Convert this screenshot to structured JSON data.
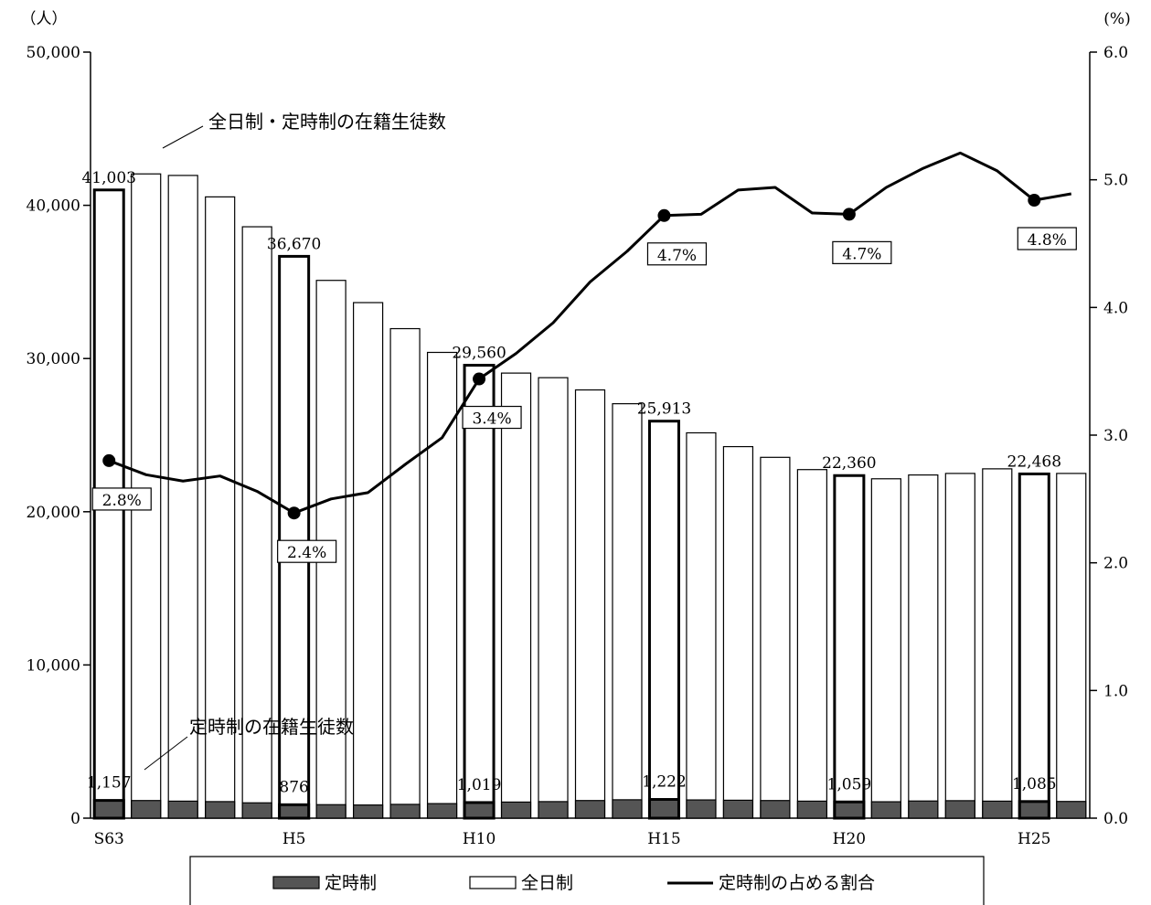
{
  "chart_data": {
    "type": "bar",
    "left_axis_unit": "（人）",
    "right_axis_unit": "(%)",
    "left_ticks": [
      "0",
      "10,000",
      "20,000",
      "30,000",
      "40,000",
      "50,000"
    ],
    "right_ticks": [
      "0.0",
      "1.0",
      "2.0",
      "3.0",
      "4.0",
      "5.0",
      "6.0"
    ],
    "ylim_left": [
      0,
      50000
    ],
    "ylim_right": [
      0.0,
      6.0
    ],
    "x_tick_labels": [
      {
        "index": 0,
        "label": "S63"
      },
      {
        "index": 5,
        "label": "H5"
      },
      {
        "index": 10,
        "label": "H10"
      },
      {
        "index": 15,
        "label": "H15"
      },
      {
        "index": 20,
        "label": "H20"
      },
      {
        "index": 25,
        "label": "H25"
      }
    ],
    "highlighted_indices": [
      0,
      5,
      10,
      15,
      20,
      25
    ],
    "categories": [
      "S63",
      "H1",
      "H2",
      "H3",
      "H4",
      "H5",
      "H6",
      "H7",
      "H8",
      "H9",
      "H10",
      "H11",
      "H12",
      "H13",
      "H14",
      "H15",
      "H16",
      "H17",
      "H18",
      "H19",
      "H20",
      "H21",
      "H22",
      "H23",
      "H24",
      "H25",
      "H26"
    ],
    "series": [
      {
        "name": "定時制",
        "kind": "bar",
        "color": "#555555",
        "values": [
          1157,
          1150,
          1110,
          1080,
          1000,
          876,
          880,
          860,
          900,
          950,
          1019,
          1050,
          1080,
          1150,
          1200,
          1222,
          1190,
          1170,
          1150,
          1110,
          1059,
          1070,
          1120,
          1140,
          1110,
          1085,
          1090
        ]
      },
      {
        "name": "全日制",
        "kind": "bar",
        "color": "#ffffff",
        "values": [
          41003,
          42050,
          41950,
          40550,
          38600,
          36670,
          35100,
          33650,
          31950,
          30400,
          29560,
          29050,
          28750,
          27950,
          27050,
          25913,
          25150,
          24250,
          23550,
          22750,
          22360,
          22150,
          22400,
          22500,
          22800,
          22468,
          22500
        ]
      },
      {
        "name": "定時制の占める割合",
        "kind": "line",
        "color": "#000000",
        "values": [
          2.8,
          2.69,
          2.64,
          2.68,
          2.56,
          2.39,
          2.5,
          2.55,
          2.77,
          2.98,
          3.44,
          3.64,
          3.88,
          4.2,
          4.44,
          4.72,
          4.73,
          4.92,
          4.94,
          4.74,
          4.73,
          4.94,
          5.09,
          5.21,
          5.07,
          4.84,
          4.89
        ]
      }
    ],
    "value_labels_total": [
      {
        "index": 0,
        "text": "41,003"
      },
      {
        "index": 5,
        "text": "36,670"
      },
      {
        "index": 10,
        "text": "29,560"
      },
      {
        "index": 15,
        "text": "25,913"
      },
      {
        "index": 20,
        "text": "22,360"
      },
      {
        "index": 25,
        "text": "22,468"
      }
    ],
    "value_labels_part": [
      {
        "index": 0,
        "text": "1,157"
      },
      {
        "index": 5,
        "text": "876"
      },
      {
        "index": 10,
        "text": "1,019"
      },
      {
        "index": 15,
        "text": "1,222"
      },
      {
        "index": 20,
        "text": "1,059"
      },
      {
        "index": 25,
        "text": "1,085"
      }
    ],
    "pct_labels": [
      {
        "index": 0,
        "text": "2.8%",
        "pos": "below"
      },
      {
        "index": 5,
        "text": "2.4%",
        "pos": "below"
      },
      {
        "index": 10,
        "text": "3.4%",
        "pos": "below"
      },
      {
        "index": 15,
        "text": "4.7%",
        "pos": "below"
      },
      {
        "index": 20,
        "text": "4.7%",
        "pos": "below"
      },
      {
        "index": 25,
        "text": "4.8%",
        "pos": "below"
      }
    ],
    "annotations": [
      {
        "text": "全日制・定時制の在籍生徒数",
        "target": "total"
      },
      {
        "text": "定時制の在籍生徒数",
        "target": "part"
      }
    ],
    "legend": {
      "position": "bottom",
      "items": [
        {
          "label": "定時制",
          "kind": "bar-dark"
        },
        {
          "label": "全日制",
          "kind": "bar-white"
        },
        {
          "label": "定時制の占める割合",
          "kind": "line"
        }
      ]
    },
    "grid": false
  }
}
